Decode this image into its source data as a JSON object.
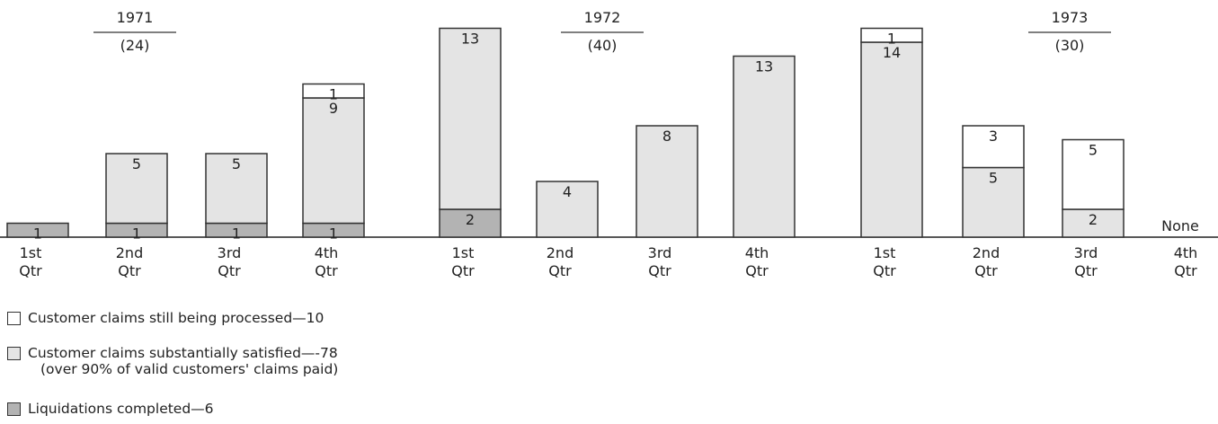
{
  "chart_data": {
    "type": "bar",
    "stacked": true,
    "groups": [
      {
        "year": "1971",
        "total": "(24)"
      },
      {
        "year": "1972",
        "total": "(40)"
      },
      {
        "year": "1973",
        "total": "(30)"
      }
    ],
    "categories": [
      {
        "group": 0,
        "label": [
          "1st",
          "Qtr"
        ]
      },
      {
        "group": 0,
        "label": [
          "2nd",
          "Qtr"
        ]
      },
      {
        "group": 0,
        "label": [
          "3rd",
          "Qtr"
        ]
      },
      {
        "group": 0,
        "label": [
          "4th",
          "Qtr"
        ]
      },
      {
        "group": 1,
        "label": [
          "1st",
          "Qtr"
        ]
      },
      {
        "group": 1,
        "label": [
          "2nd",
          "Qtr"
        ]
      },
      {
        "group": 1,
        "label": [
          "3rd",
          "Qtr"
        ]
      },
      {
        "group": 1,
        "label": [
          "4th",
          "Qtr"
        ]
      },
      {
        "group": 2,
        "label": [
          "1st",
          "Qtr"
        ]
      },
      {
        "group": 2,
        "label": [
          "2nd",
          "Qtr"
        ]
      },
      {
        "group": 2,
        "label": [
          "3rd",
          "Qtr"
        ]
      },
      {
        "group": 2,
        "label": [
          "4th",
          "Qtr"
        ]
      }
    ],
    "series": [
      {
        "key": "liquidations",
        "values": [
          1,
          1,
          1,
          1,
          2,
          0,
          0,
          0,
          0,
          0,
          0,
          0
        ],
        "color": "#b3b3b3"
      },
      {
        "key": "satisfied",
        "values": [
          0,
          5,
          5,
          9,
          13,
          4,
          8,
          13,
          14,
          5,
          2,
          0
        ],
        "color": "#e4e4e4"
      },
      {
        "key": "processing",
        "values": [
          0,
          0,
          0,
          1,
          0,
          0,
          0,
          0,
          1,
          3,
          5,
          0
        ],
        "color": "#ffffff"
      }
    ],
    "annotations": [
      {
        "category": 11,
        "text": "None"
      }
    ]
  },
  "legend": [
    {
      "series": "processing",
      "text": "Customer claims still being processed—10",
      "color": "#ffffff"
    },
    {
      "series": "satisfied",
      "text": "Customer claims substantially satisfied—-78",
      "subtext": "(over 90% of valid customers' claims paid)",
      "color": "#e4e4e4"
    },
    {
      "series": "liquidations",
      "text": "Liquidations completed—6",
      "color": "#b3b3b3"
    }
  ]
}
